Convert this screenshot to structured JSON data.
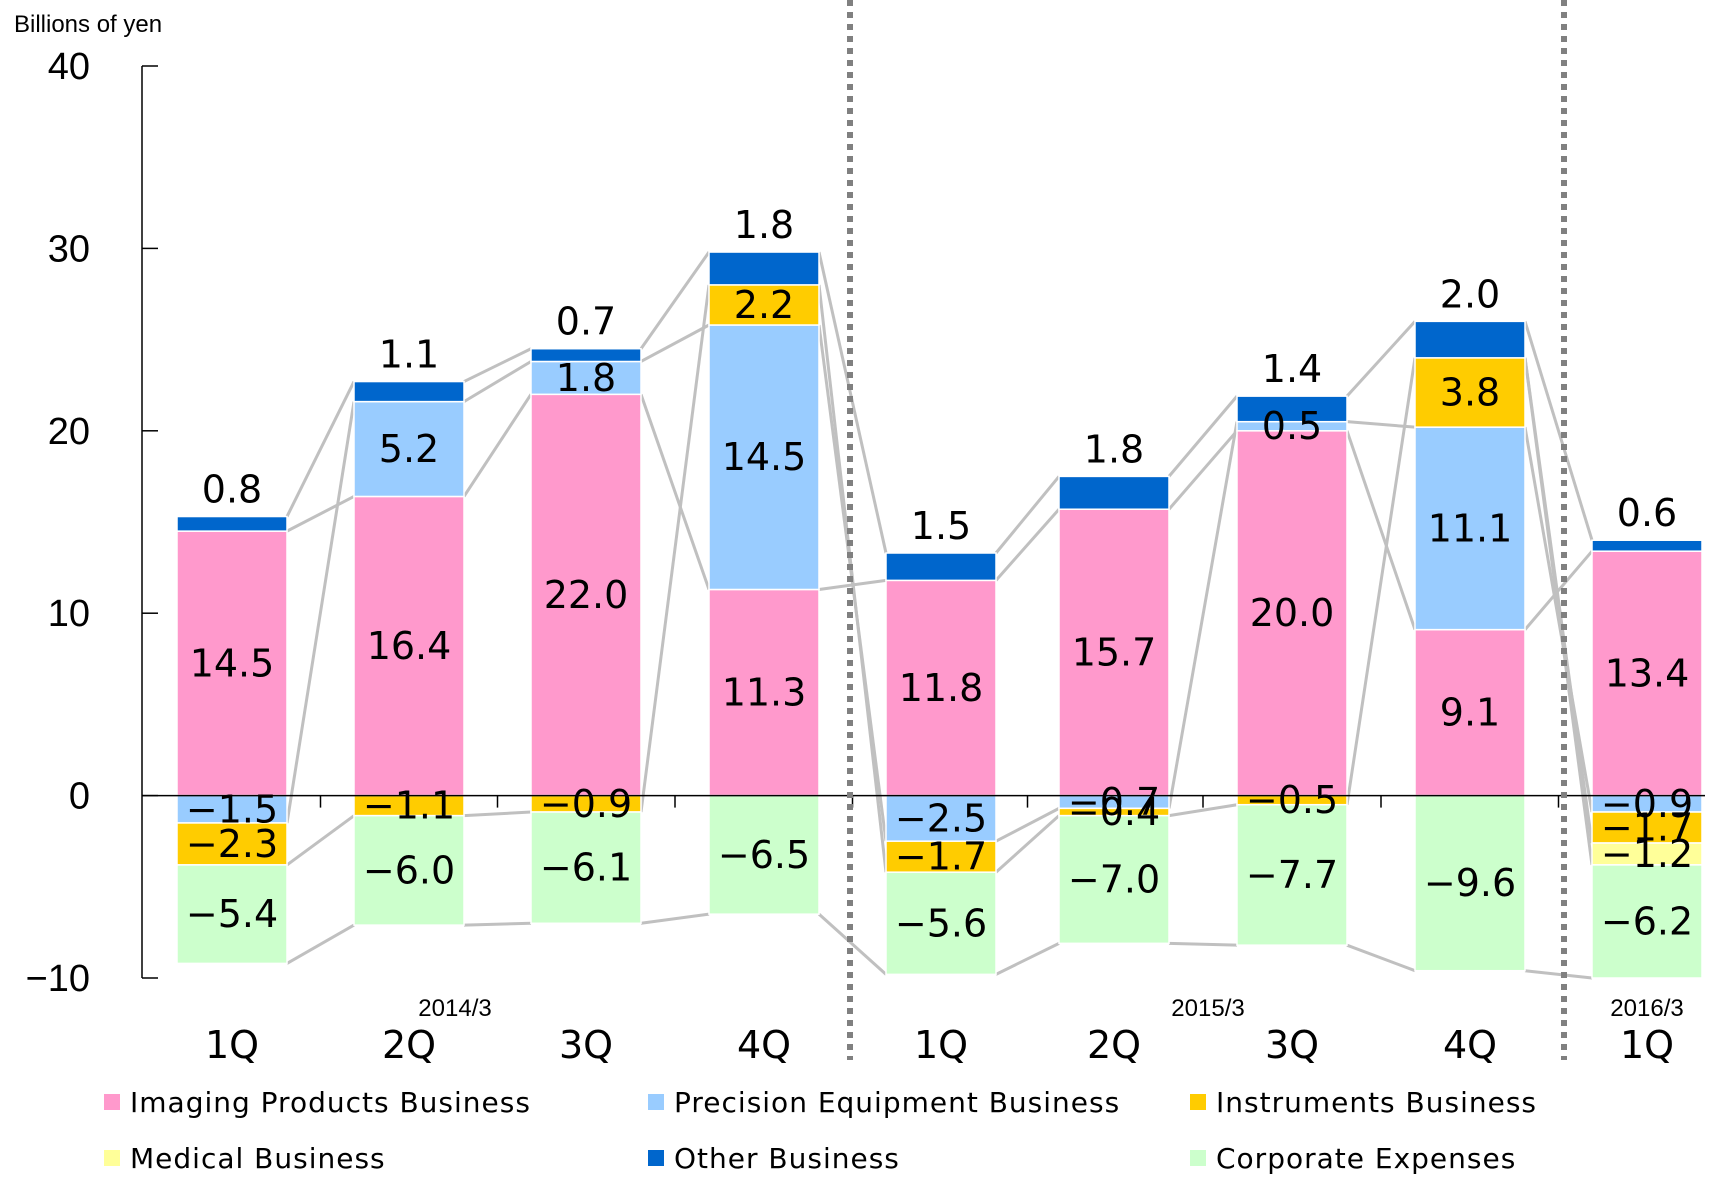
{
  "chart_data": {
    "type": "bar",
    "stacked": true,
    "ylabel": "Billions of yen",
    "ylim": [
      -10,
      40
    ],
    "yticks": [
      -10,
      0,
      10,
      20,
      30,
      40
    ],
    "categories": [
      "1Q",
      "2Q",
      "3Q",
      "4Q",
      "1Q",
      "2Q",
      "3Q",
      "4Q",
      "1Q"
    ],
    "groups": [
      {
        "label": "2014/3",
        "start": 0,
        "end": 3
      },
      {
        "label": "2015/3",
        "start": 4,
        "end": 7
      },
      {
        "label": "2016/3",
        "start": 8,
        "end": 8
      }
    ],
    "grid": false,
    "legend_position": "bottom",
    "series": [
      {
        "name": "Imaging Products Business",
        "color": "#FF99CC",
        "values": [
          14.5,
          16.4,
          22.0,
          11.3,
          11.8,
          15.7,
          20.0,
          9.1,
          13.4
        ],
        "labels": [
          "14.5",
          "16.4",
          "22.0",
          "11.3",
          "11.8",
          "15.7",
          "20.0",
          "9.1",
          "13.4"
        ]
      },
      {
        "name": "Precision Equipment Business",
        "color": "#99CCFF",
        "values": [
          -1.5,
          5.2,
          1.8,
          14.5,
          -2.5,
          -0.7,
          0.5,
          11.1,
          -0.9
        ],
        "labels": [
          "−1.5",
          "5.2",
          "1.8",
          "14.5",
          "−2.5",
          "−0.7",
          "0.5",
          "11.1",
          "−0.9"
        ]
      },
      {
        "name": "Instruments Business",
        "color": "#FFCC00",
        "values": [
          -2.3,
          -1.1,
          -0.9,
          2.2,
          -1.7,
          -0.4,
          -0.5,
          3.8,
          -1.7
        ],
        "labels": [
          "−2.3",
          "−1.1",
          "−0.9",
          "2.2",
          "−1.7",
          "−0.4",
          "−0.5",
          "3.8",
          "−1.7"
        ]
      },
      {
        "name": "Medical Business",
        "color": "#FFFF99",
        "values": [
          0,
          0,
          0,
          0,
          0,
          0,
          0,
          0,
          -1.2
        ],
        "labels": [
          "",
          "",
          "",
          "",
          "",
          "",
          "",
          "",
          "−1.2"
        ]
      },
      {
        "name": "Other Business",
        "color": "#0066CC",
        "values": [
          0.8,
          1.1,
          0.7,
          1.8,
          1.5,
          1.8,
          1.4,
          2.0,
          0.6
        ],
        "labels": [
          "0.8",
          "1.1",
          "0.7",
          "1.8",
          "1.5",
          "1.8",
          "1.4",
          "2.0",
          "0.6"
        ]
      },
      {
        "name": "Corporate Expenses",
        "color": "#CCFFCC",
        "values": [
          -5.4,
          -6.0,
          -6.1,
          -6.5,
          -5.6,
          -7.0,
          -7.7,
          -9.6,
          -6.2
        ],
        "labels": [
          "−5.4",
          "−6.0",
          "−6.1",
          "−6.5",
          "−5.6",
          "−7.0",
          "−7.7",
          "−9.6",
          "−6.2"
        ]
      }
    ],
    "tick_labels": [
      "−10",
      "0",
      "10",
      "20",
      "30",
      "40"
    ]
  }
}
